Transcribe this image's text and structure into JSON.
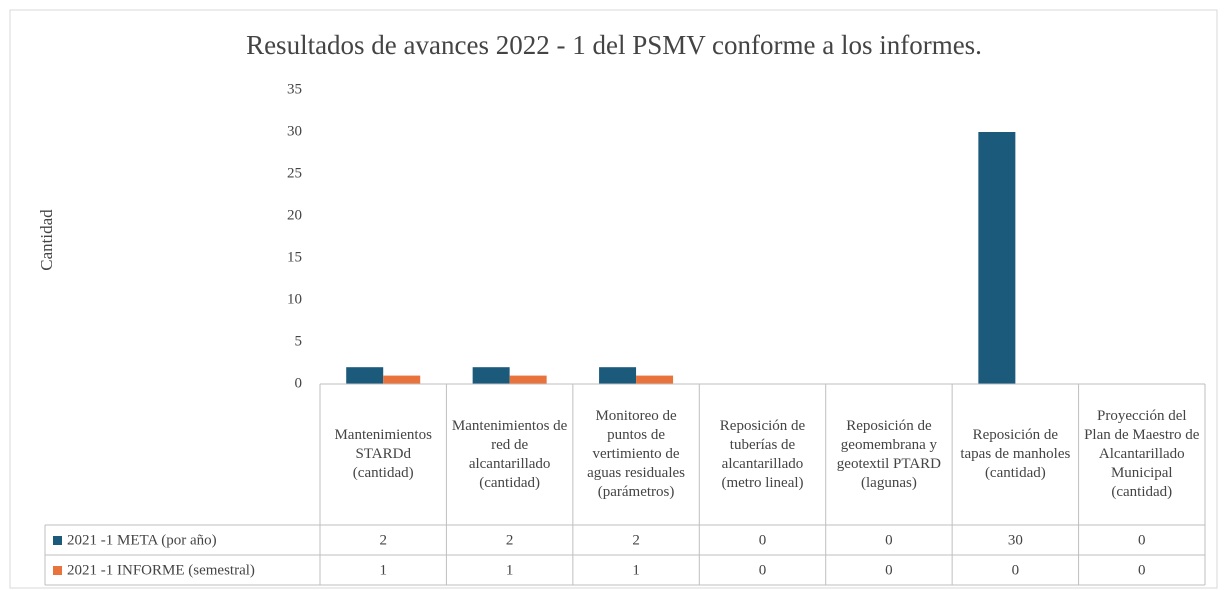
{
  "chart_data": {
    "type": "bar",
    "title": "Resultados de avances 2022 - 1 del PSMV conforme a los informes.",
    "y_label": "Cantidad",
    "categories": [
      "Mantenimientos STARDd (cantidad)",
      "Mantenimientos de red de alcantarillado (cantidad)",
      "Monitoreo de puntos de vertimiento de aguas residuales (parámetros)",
      "Reposición de tuberías de alcantarillado (metro lineal)",
      "Reposición de geomembrana y geotextil PTARD (lagunas)",
      "Reposición de tapas de manholes (cantidad)",
      "Proyección del Plan de Maestro de Alcantarillado Municipal (cantidad)"
    ],
    "series": [
      {
        "name": "2021 -1 META (por año)",
        "color": "#1b5a7b",
        "values": [
          2,
          2,
          2,
          0,
          0,
          30,
          0
        ]
      },
      {
        "name": "2021 -1 INFORME (semestral)",
        "color": "#e8733d",
        "values": [
          1,
          1,
          1,
          0,
          0,
          0,
          0
        ]
      }
    ],
    "ylim": [
      0,
      35
    ],
    "yticks": [
      0,
      5,
      10,
      15,
      20,
      25,
      30,
      35
    ],
    "grid": false,
    "data_table": true
  }
}
